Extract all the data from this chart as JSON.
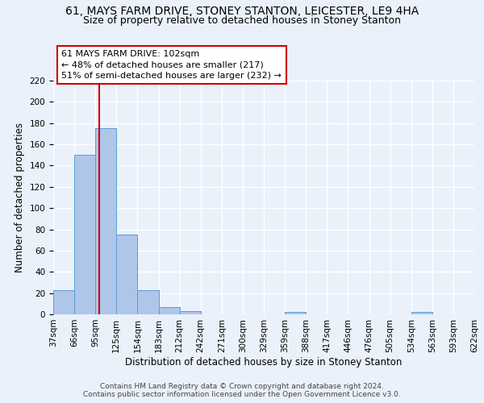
{
  "title": "61, MAYS FARM DRIVE, STONEY STANTON, LEICESTER, LE9 4HA",
  "subtitle": "Size of property relative to detached houses in Stoney Stanton",
  "xlabel": "Distribution of detached houses by size in Stoney Stanton",
  "ylabel": "Number of detached properties",
  "bin_labels": [
    "37sqm",
    "66sqm",
    "95sqm",
    "125sqm",
    "154sqm",
    "183sqm",
    "212sqm",
    "242sqm",
    "271sqm",
    "300sqm",
    "329sqm",
    "359sqm",
    "388sqm",
    "417sqm",
    "446sqm",
    "476sqm",
    "505sqm",
    "534sqm",
    "563sqm",
    "593sqm",
    "622sqm"
  ],
  "bar_values": [
    23,
    150,
    175,
    75,
    23,
    7,
    3,
    0,
    0,
    0,
    0,
    2,
    0,
    0,
    0,
    0,
    0,
    2,
    0,
    0
  ],
  "bar_color": "#aec6e8",
  "bar_edge_color": "#5b9bd5",
  "red_line_bin": 2,
  "annotation_line1": "61 MAYS FARM DRIVE: 102sqm",
  "annotation_line2": "← 48% of detached houses are smaller (217)",
  "annotation_line3": "51% of semi-detached houses are larger (232) →",
  "annotation_box_color": "#ffffff",
  "annotation_border_color": "#cc0000",
  "ylim": [
    0,
    220
  ],
  "yticks": [
    0,
    20,
    40,
    60,
    80,
    100,
    120,
    140,
    160,
    180,
    200,
    220
  ],
  "footer_text": "Contains HM Land Registry data © Crown copyright and database right 2024.\nContains public sector information licensed under the Open Government Licence v3.0.",
  "background_color": "#eaf1fb",
  "grid_color": "#ffffff",
  "title_fontsize": 10,
  "subtitle_fontsize": 9,
  "axis_label_fontsize": 8.5,
  "tick_fontsize": 7.5,
  "annotation_fontsize": 8,
  "footer_fontsize": 6.5
}
